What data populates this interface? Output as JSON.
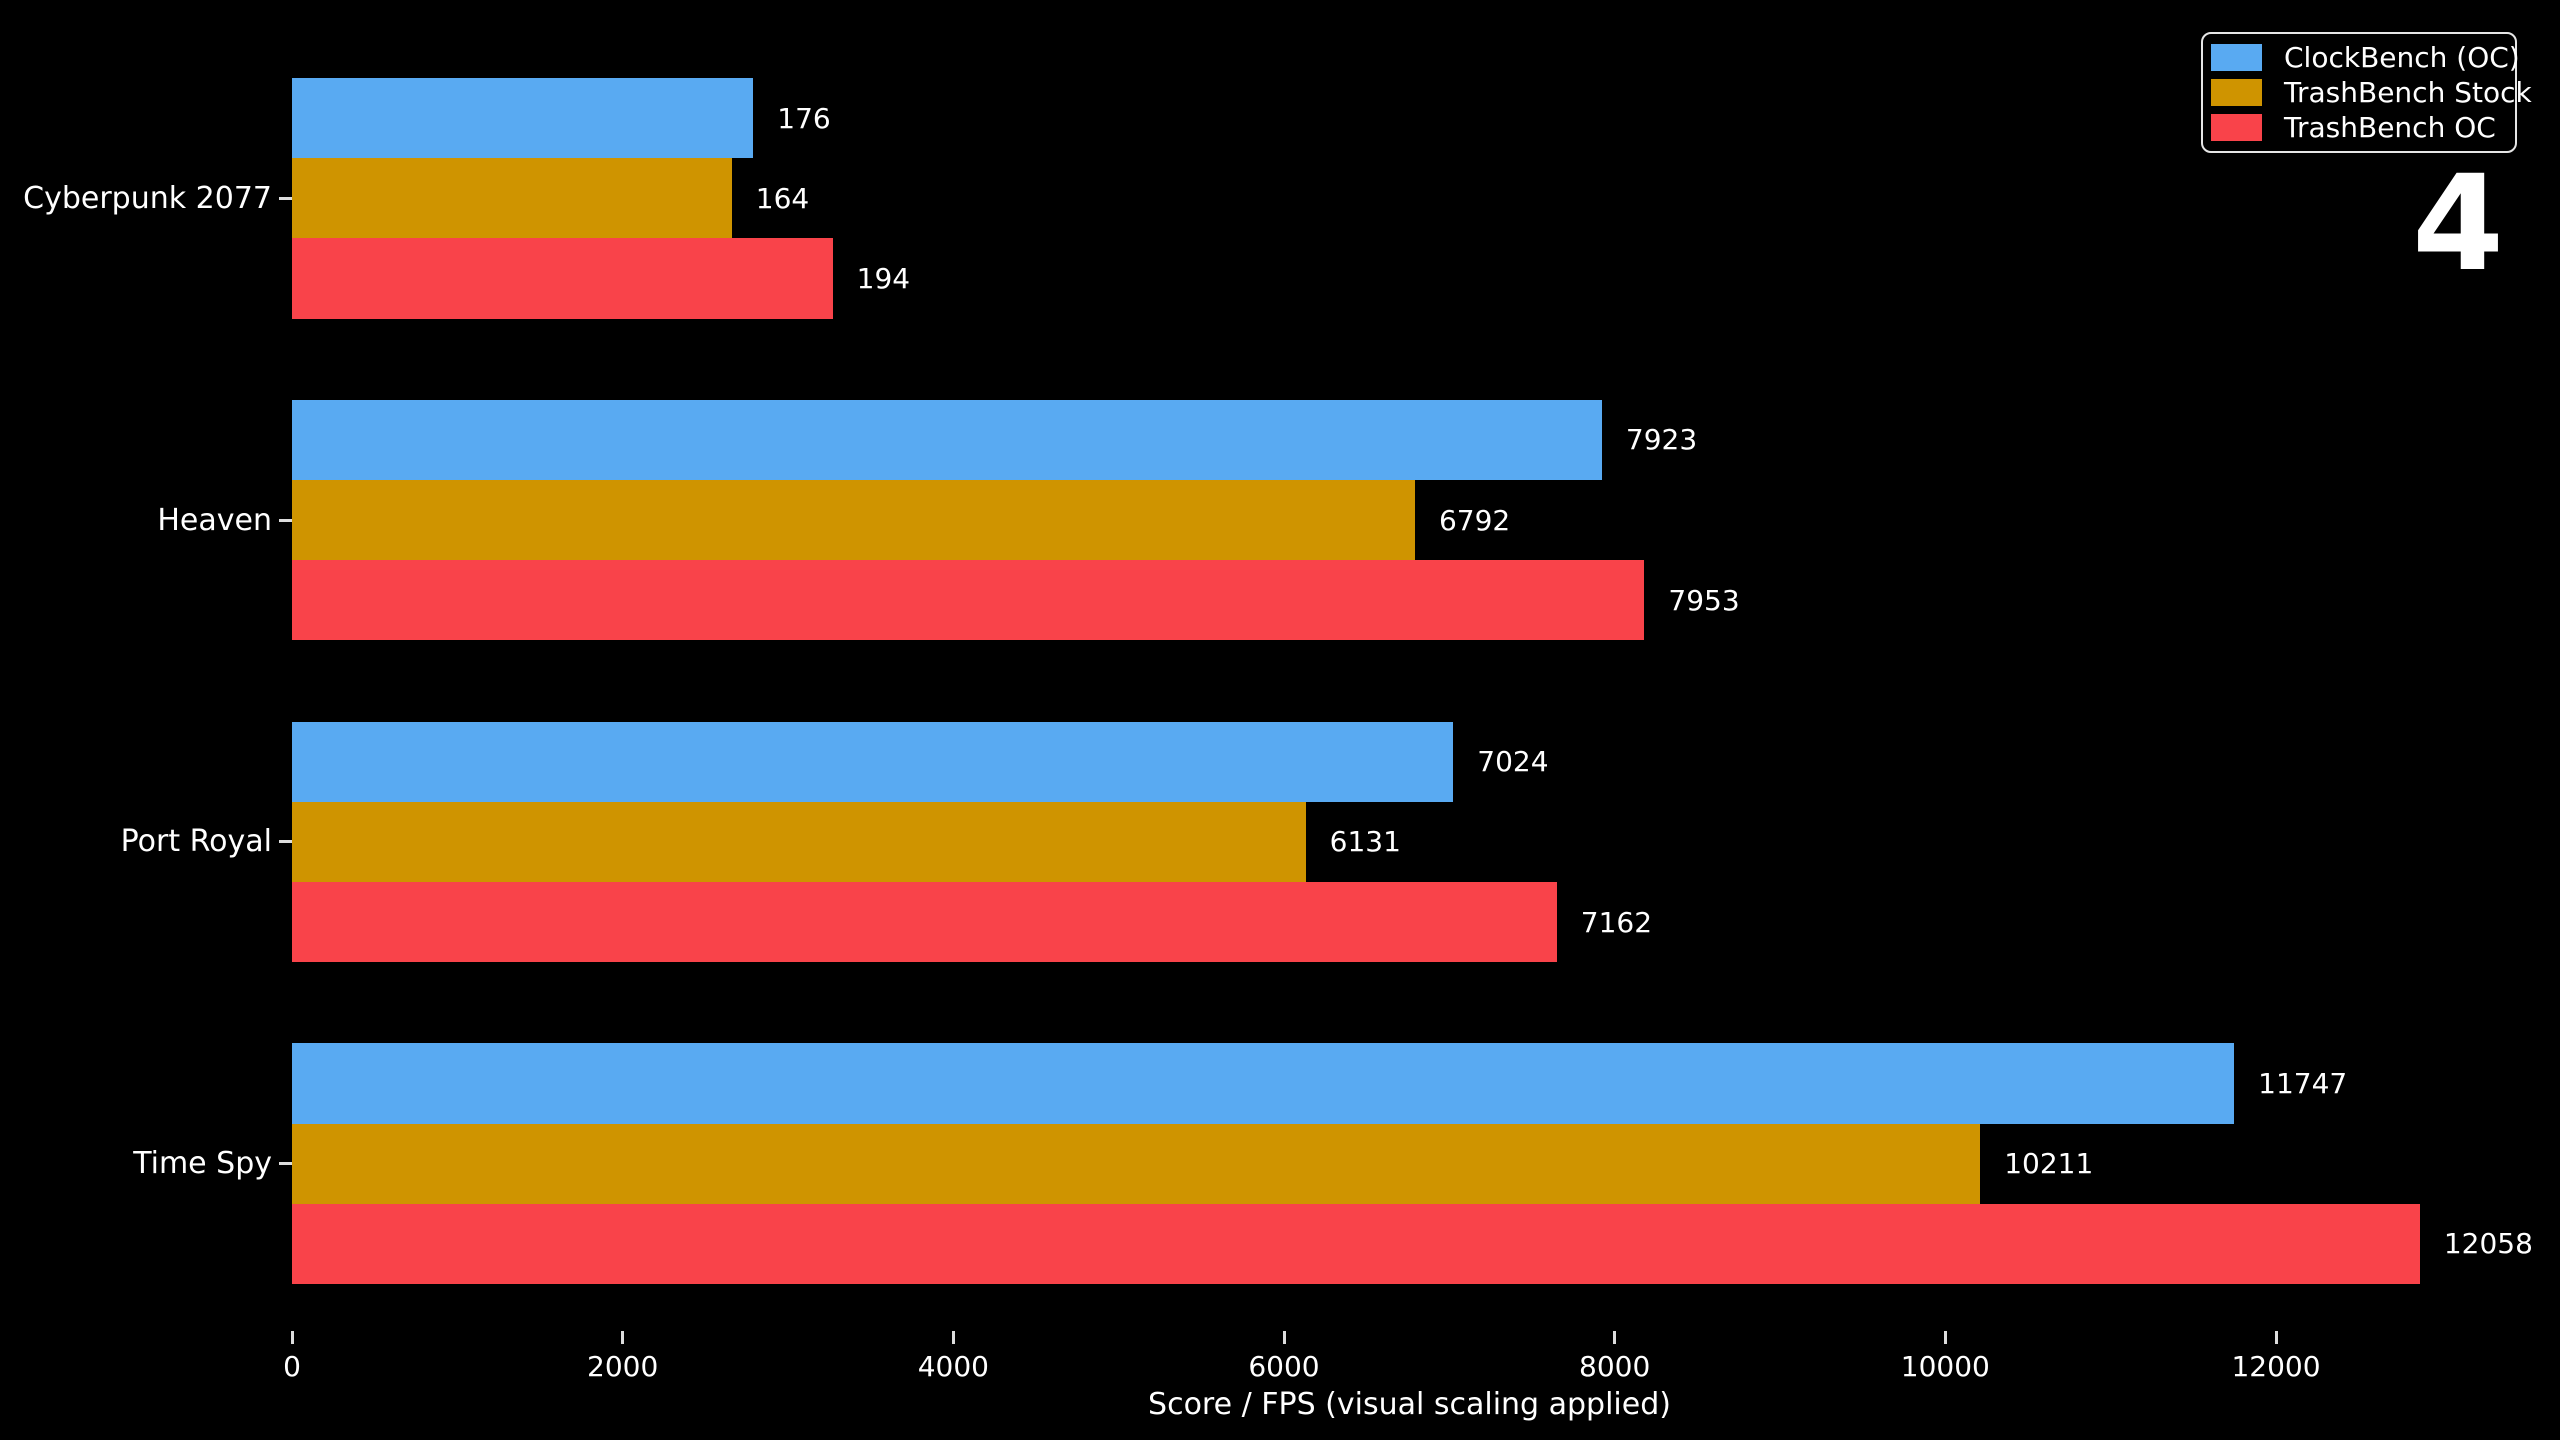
{
  "page": {
    "background": "#000000",
    "overlay_number": "4"
  },
  "chart_data": {
    "type": "bar",
    "orientation": "horizontal-grouped",
    "title": "",
    "xlabel": "Score / FPS (visual scaling applied)",
    "ylabel": "",
    "xlim": [
      0,
      13500
    ],
    "xticks": [
      0,
      2000,
      4000,
      6000,
      8000,
      10000,
      12000
    ],
    "grid": "off",
    "legend_position": "upper right",
    "background_color": "#000000",
    "text_color": "#ffffff",
    "categories": [
      "Cyberpunk 2077",
      "Heaven",
      "Port Royal",
      "Time Spy"
    ],
    "series": [
      {
        "name": "ClockBench (OC)",
        "color": "#59aaf2",
        "values": [
          176,
          7923,
          7024,
          11747
        ],
        "bar_lengths_axis_units": [
          2790,
          7923,
          7024,
          11747
        ]
      },
      {
        "name": "TrashBench Stock",
        "color": "#cf9400",
        "values": [
          164,
          6792,
          6131,
          10211
        ],
        "bar_lengths_axis_units": [
          2660,
          6792,
          6131,
          10211
        ]
      },
      {
        "name": "TrashBench OC",
        "color": "#f9434a",
        "values": [
          194,
          7953,
          7162,
          12058
        ],
        "bar_lengths_axis_units": [
          3270,
          8180,
          7650,
          12870
        ]
      }
    ],
    "visual_scaling_note": "Bar lengths do not match labeled values for Cyberpunk 2077 FPS (~16x) and TrashBench OC bars (drawn longer); axis label states visual scaling applied"
  }
}
